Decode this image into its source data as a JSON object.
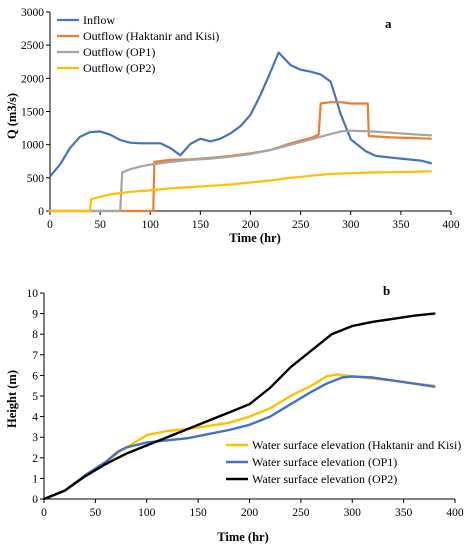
{
  "chart_data": [
    {
      "type": "line",
      "panel_label": "a",
      "xlabel": "Time (hr)",
      "ylabel": "Q (m3/s)",
      "xlim": [
        0,
        400
      ],
      "ylim": [
        0,
        3000
      ],
      "x_ticks": [
        0,
        50,
        100,
        150,
        200,
        250,
        300,
        350,
        400
      ],
      "y_ticks": [
        0,
        500,
        1000,
        1500,
        2000,
        2500,
        3000
      ],
      "grid": false,
      "legend_position": "top-left",
      "series": [
        {
          "name": "Inflow",
          "color": "#4472C4",
          "points": [
            [
              0,
              520
            ],
            [
              10,
              700
            ],
            [
              20,
              950
            ],
            [
              30,
              1120
            ],
            [
              40,
              1190
            ],
            [
              50,
              1200
            ],
            [
              60,
              1150
            ],
            [
              70,
              1070
            ],
            [
              80,
              1030
            ],
            [
              90,
              1020
            ],
            [
              100,
              1020
            ],
            [
              110,
              1020
            ],
            [
              120,
              950
            ],
            [
              130,
              840
            ],
            [
              140,
              1010
            ],
            [
              150,
              1090
            ],
            [
              160,
              1050
            ],
            [
              170,
              1090
            ],
            [
              180,
              1170
            ],
            [
              190,
              1280
            ],
            [
              200,
              1450
            ],
            [
              210,
              1750
            ],
            [
              220,
              2100
            ],
            [
              228,
              2390
            ],
            [
              240,
              2200
            ],
            [
              250,
              2130
            ],
            [
              260,
              2100
            ],
            [
              270,
              2060
            ],
            [
              280,
              1950
            ],
            [
              290,
              1460
            ],
            [
              300,
              1080
            ],
            [
              315,
              900
            ],
            [
              325,
              830
            ],
            [
              350,
              790
            ],
            [
              370,
              760
            ],
            [
              380,
              720
            ]
          ]
        },
        {
          "name": "Outflow (Haktanir and Kisi)",
          "color": "#ED7D31",
          "points": [
            [
              0,
              0
            ],
            [
              103,
              0
            ],
            [
              104,
              740
            ],
            [
              120,
              770
            ],
            [
              140,
              780
            ],
            [
              160,
              800
            ],
            [
              180,
              830
            ],
            [
              200,
              870
            ],
            [
              220,
              920
            ],
            [
              240,
              1020
            ],
            [
              260,
              1100
            ],
            [
              268,
              1150
            ],
            [
              270,
              1620
            ],
            [
              280,
              1640
            ],
            [
              290,
              1640
            ],
            [
              300,
              1620
            ],
            [
              310,
              1620
            ],
            [
              317,
              1620
            ],
            [
              318,
              1130
            ],
            [
              340,
              1110
            ],
            [
              360,
              1100
            ],
            [
              380,
              1090
            ]
          ]
        },
        {
          "name": "Outflow (OP1)",
          "color": "#A5A5A5",
          "points": [
            [
              0,
              0
            ],
            [
              70,
              0
            ],
            [
              72,
              580
            ],
            [
              80,
              630
            ],
            [
              90,
              670
            ],
            [
              100,
              700
            ],
            [
              120,
              740
            ],
            [
              140,
              770
            ],
            [
              160,
              790
            ],
            [
              180,
              820
            ],
            [
              200,
              860
            ],
            [
              220,
              920
            ],
            [
              240,
              1000
            ],
            [
              260,
              1080
            ],
            [
              280,
              1160
            ],
            [
              290,
              1200
            ],
            [
              300,
              1210
            ],
            [
              320,
              1200
            ],
            [
              340,
              1180
            ],
            [
              360,
              1160
            ],
            [
              380,
              1140
            ]
          ]
        },
        {
          "name": "Outflow (OP2)",
          "color": "#FFC000",
          "points": [
            [
              0,
              0
            ],
            [
              40,
              0
            ],
            [
              41,
              180
            ],
            [
              60,
              250
            ],
            [
              80,
              290
            ],
            [
              100,
              310
            ],
            [
              120,
              340
            ],
            [
              140,
              360
            ],
            [
              160,
              380
            ],
            [
              180,
              400
            ],
            [
              200,
              430
            ],
            [
              220,
              460
            ],
            [
              240,
              500
            ],
            [
              260,
              530
            ],
            [
              280,
              560
            ],
            [
              300,
              570
            ],
            [
              320,
              580
            ],
            [
              340,
              585
            ],
            [
              360,
              590
            ],
            [
              380,
              600
            ]
          ]
        }
      ]
    },
    {
      "type": "line",
      "panel_label": "b",
      "xlabel": "Time (hr)",
      "ylabel": "Height (m)",
      "xlim": [
        0,
        400
      ],
      "ylim": [
        0,
        10
      ],
      "x_ticks": [
        0,
        50,
        100,
        150,
        200,
        250,
        300,
        350,
        400
      ],
      "y_ticks": [
        0,
        1,
        2,
        3,
        4,
        5,
        6,
        7,
        8,
        9,
        10
      ],
      "grid": false,
      "legend_position": "bottom-right",
      "series": [
        {
          "name": "Water surface elevation (Haktanir and Kisi)",
          "color": "#FFC000",
          "points": [
            [
              0,
              0
            ],
            [
              20,
              0.4
            ],
            [
              40,
              1.15
            ],
            [
              60,
              1.8
            ],
            [
              75,
              2.35
            ],
            [
              90,
              2.8
            ],
            [
              100,
              3.1
            ],
            [
              110,
              3.2
            ],
            [
              120,
              3.3
            ],
            [
              140,
              3.4
            ],
            [
              160,
              3.55
            ],
            [
              180,
              3.7
            ],
            [
              200,
              4.0
            ],
            [
              220,
              4.4
            ],
            [
              240,
              5.0
            ],
            [
              260,
              5.5
            ],
            [
              275,
              5.95
            ],
            [
              285,
              6.05
            ],
            [
              300,
              5.95
            ],
            [
              320,
              5.85
            ],
            [
              340,
              5.75
            ],
            [
              360,
              5.6
            ],
            [
              380,
              5.5
            ]
          ]
        },
        {
          "name": "Water surface elevation (OP1)",
          "color": "#4472C4",
          "points": [
            [
              0,
              0
            ],
            [
              20,
              0.4
            ],
            [
              40,
              1.15
            ],
            [
              60,
              1.8
            ],
            [
              72,
              2.3
            ],
            [
              80,
              2.5
            ],
            [
              100,
              2.75
            ],
            [
              120,
              2.85
            ],
            [
              140,
              2.95
            ],
            [
              160,
              3.15
            ],
            [
              180,
              3.35
            ],
            [
              200,
              3.6
            ],
            [
              220,
              4.0
            ],
            [
              240,
              4.6
            ],
            [
              260,
              5.2
            ],
            [
              275,
              5.6
            ],
            [
              290,
              5.9
            ],
            [
              300,
              5.95
            ],
            [
              320,
              5.9
            ],
            [
              340,
              5.75
            ],
            [
              360,
              5.6
            ],
            [
              380,
              5.45
            ]
          ]
        },
        {
          "name": "Water surface elevation (OP2)",
          "color": "#000000",
          "points": [
            [
              0,
              0
            ],
            [
              20,
              0.4
            ],
            [
              40,
              1.1
            ],
            [
              60,
              1.7
            ],
            [
              80,
              2.2
            ],
            [
              100,
              2.6
            ],
            [
              120,
              3.0
            ],
            [
              140,
              3.4
            ],
            [
              160,
              3.8
            ],
            [
              180,
              4.2
            ],
            [
              200,
              4.6
            ],
            [
              220,
              5.4
            ],
            [
              240,
              6.4
            ],
            [
              260,
              7.2
            ],
            [
              280,
              8.0
            ],
            [
              300,
              8.4
            ],
            [
              320,
              8.6
            ],
            [
              340,
              8.75
            ],
            [
              360,
              8.9
            ],
            [
              380,
              9.0
            ]
          ]
        }
      ]
    }
  ]
}
